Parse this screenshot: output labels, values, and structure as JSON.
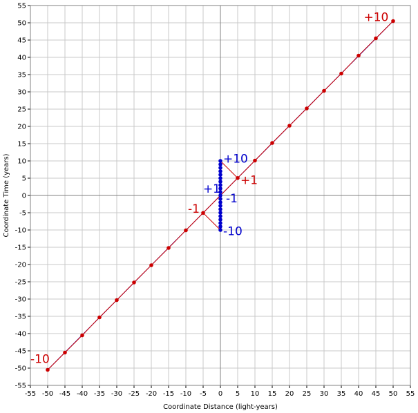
{
  "chart_data": {
    "type": "scatter",
    "title": "",
    "xlabel": "Coordinate Distance (light-years)",
    "ylabel": "Coordinate Time (years)",
    "xlim": [
      -55,
      55
    ],
    "ylim": [
      -55,
      55
    ],
    "xticks": [
      -55,
      -50,
      -45,
      -40,
      -35,
      -30,
      -25,
      -20,
      -15,
      -10,
      -5,
      0,
      5,
      10,
      15,
      20,
      25,
      30,
      35,
      40,
      45,
      50,
      55
    ],
    "yticks": [
      -55,
      -50,
      -45,
      -40,
      -35,
      -30,
      -25,
      -20,
      -15,
      -10,
      -5,
      0,
      5,
      10,
      15,
      20,
      25,
      30,
      35,
      40,
      45,
      50,
      55
    ],
    "grid": true,
    "colors": {
      "moving": "#cc0000",
      "stationary": "#0000cc",
      "grid": "#c8c8c8",
      "axis": "#808080"
    },
    "series": [
      {
        "kind": "points-line",
        "color": "#cc0000",
        "points": [
          [
            -50,
            -50.5
          ],
          [
            -45,
            -45.5
          ],
          [
            -40,
            -40.5
          ],
          [
            -35,
            -35.3
          ],
          [
            -30,
            -30.3
          ],
          [
            -25,
            -25.2
          ],
          [
            -20,
            -20.2
          ],
          [
            -15,
            -15.2
          ],
          [
            -10,
            -10.1
          ],
          [
            -5,
            -5.05
          ],
          [
            5,
            5.05
          ],
          [
            10,
            10.1
          ],
          [
            15,
            15.2
          ],
          [
            20,
            20.2
          ],
          [
            25,
            25.2
          ],
          [
            30,
            30.3
          ],
          [
            35,
            35.3
          ],
          [
            40,
            40.5
          ],
          [
            45,
            45.5
          ],
          [
            50,
            50.5
          ]
        ]
      },
      {
        "kind": "points-line",
        "color": "#0000cc",
        "points": [
          [
            0,
            -10
          ],
          [
            0,
            -9
          ],
          [
            0,
            -8
          ],
          [
            0,
            -7
          ],
          [
            0,
            -6
          ],
          [
            0,
            -5
          ],
          [
            0,
            -4
          ],
          [
            0,
            -3
          ],
          [
            0,
            -2
          ],
          [
            0,
            -1
          ],
          [
            0,
            0
          ],
          [
            0,
            1
          ],
          [
            0,
            2
          ],
          [
            0,
            3
          ],
          [
            0,
            4
          ],
          [
            0,
            5
          ],
          [
            0,
            6
          ],
          [
            0,
            7
          ],
          [
            0,
            8
          ],
          [
            0,
            9
          ],
          [
            0,
            10
          ]
        ]
      }
    ],
    "lines": [
      {
        "color": "#0000cc",
        "from": [
          -50,
          -50.5
        ],
        "to": [
          50,
          50.5
        ]
      },
      {
        "color": "#cc0000",
        "from": [
          -5,
          -5.05
        ],
        "to": [
          0,
          -10
        ]
      },
      {
        "color": "#cc0000",
        "from": [
          0,
          10
        ],
        "to": [
          5,
          5.05
        ]
      }
    ],
    "annotations": [
      {
        "text": "+10",
        "x": 41.5,
        "y": 50.5,
        "color": "#cc0000",
        "anchor": "start"
      },
      {
        "text": "-10",
        "x": -55,
        "y": -48.5,
        "color": "#cc0000",
        "anchor": "start"
      },
      {
        "text": "+10",
        "x": 0.8,
        "y": 9.5,
        "color": "#0000cc",
        "anchor": "start"
      },
      {
        "text": "+1",
        "x": 5.8,
        "y": 3.3,
        "color": "#cc0000",
        "anchor": "start"
      },
      {
        "text": "+1",
        "x": 0,
        "y": 0.8,
        "color": "#0000cc",
        "anchor": "end"
      },
      {
        "text": "-1",
        "x": 1.6,
        "y": -2,
        "color": "#0000cc",
        "anchor": "start"
      },
      {
        "text": "-1",
        "x": -6,
        "y": -5,
        "color": "#cc0000",
        "anchor": "end"
      },
      {
        "text": "-10",
        "x": 0.8,
        "y": -11.5,
        "color": "#0000cc",
        "anchor": "start"
      }
    ]
  }
}
